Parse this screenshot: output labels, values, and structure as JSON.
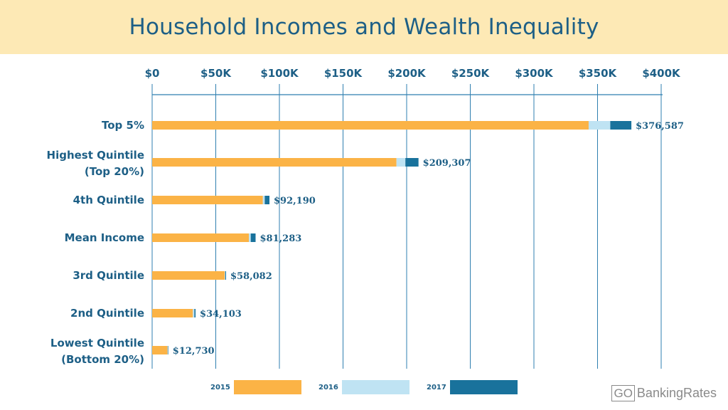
{
  "header": {
    "title": "Household Incomes and Wealth Inequality"
  },
  "brand": {
    "go": "GO",
    "name": "BankingRates"
  },
  "colors": {
    "2015": "#fbb346",
    "2016": "#bfe3f3",
    "2017": "#19729c",
    "axis": "#2f7fb0",
    "text": "#1d5f86"
  },
  "chart_data": {
    "type": "bar",
    "orientation": "horizontal",
    "stacked": true,
    "title": "Household Incomes and Wealth Inequality",
    "xlim": [
      0,
      400000
    ],
    "x_ticks": [
      "$0",
      "$50K",
      "$100K",
      "$150K",
      "$200K",
      "$250K",
      "$300K",
      "$350K",
      "$400K"
    ],
    "x_tick_values": [
      0,
      50000,
      100000,
      150000,
      200000,
      250000,
      300000,
      350000,
      400000
    ],
    "x_axis_position": "top",
    "grid": "vertical",
    "categories": [
      [
        "Top 5%"
      ],
      [
        "Highest Quintile",
        "(Top 20%)"
      ],
      [
        "4th Quintile"
      ],
      [
        "Mean Income"
      ],
      [
        "3rd Quintile"
      ],
      [
        "2nd Quintile"
      ],
      [
        "Lowest Quintile",
        "(Bottom 20%)"
      ]
    ],
    "series": [
      {
        "name": "2015",
        "cumulative_values": [
          343000,
          192000,
          87000,
          76000,
          57000,
          32000,
          12000
        ]
      },
      {
        "name": "2016",
        "cumulative_values": [
          360000,
          199000,
          88500,
          77500,
          57500,
          33200,
          12400
        ]
      },
      {
        "name": "2017",
        "cumulative_values": [
          376587,
          209307,
          92190,
          81283,
          58082,
          34103,
          12730
        ]
      }
    ],
    "data_labels": [
      "$376,587",
      "$209,307",
      "$92,190",
      "$81,283",
      "$58,082",
      "$34,103",
      "$12,730"
    ],
    "legend": {
      "position": "bottom",
      "entries": [
        "2015",
        "2016",
        "2017"
      ]
    }
  }
}
